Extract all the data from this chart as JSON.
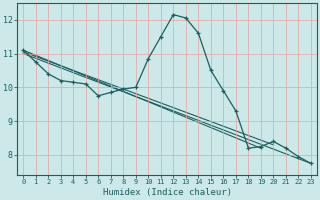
{
  "xlabel": "Humidex (Indice chaleur)",
  "ylabel": "",
  "bg_color": "#cce8e8",
  "grid_color": "#e8a0a0",
  "line_color": "#1a6060",
  "xlim": [
    -0.5,
    23.5
  ],
  "ylim": [
    7.4,
    12.5
  ],
  "xticks": [
    0,
    1,
    2,
    3,
    4,
    5,
    6,
    7,
    8,
    9,
    10,
    11,
    12,
    13,
    14,
    15,
    16,
    17,
    18,
    19,
    20,
    21,
    22,
    23
  ],
  "yticks": [
    8,
    9,
    10,
    11,
    12
  ],
  "series_main": {
    "x": [
      0,
      1,
      2,
      3,
      4,
      5,
      6,
      7,
      8,
      9,
      10,
      11,
      12,
      13,
      14,
      15,
      16,
      17,
      18,
      19,
      20,
      21,
      22,
      23
    ],
    "y": [
      11.1,
      10.75,
      10.4,
      10.2,
      10.15,
      10.1,
      9.75,
      9.85,
      9.95,
      10.0,
      10.85,
      11.5,
      12.15,
      12.05,
      11.6,
      10.5,
      9.9,
      9.3,
      8.2,
      8.25,
      8.4,
      8.2,
      7.95,
      7.75
    ]
  },
  "series_linear": [
    {
      "x": [
        0,
        19
      ],
      "y": [
        11.1,
        8.2
      ]
    },
    {
      "x": [
        0,
        20
      ],
      "y": [
        11.05,
        8.3
      ]
    },
    {
      "x": [
        0,
        23
      ],
      "y": [
        11.0,
        7.75
      ]
    }
  ]
}
